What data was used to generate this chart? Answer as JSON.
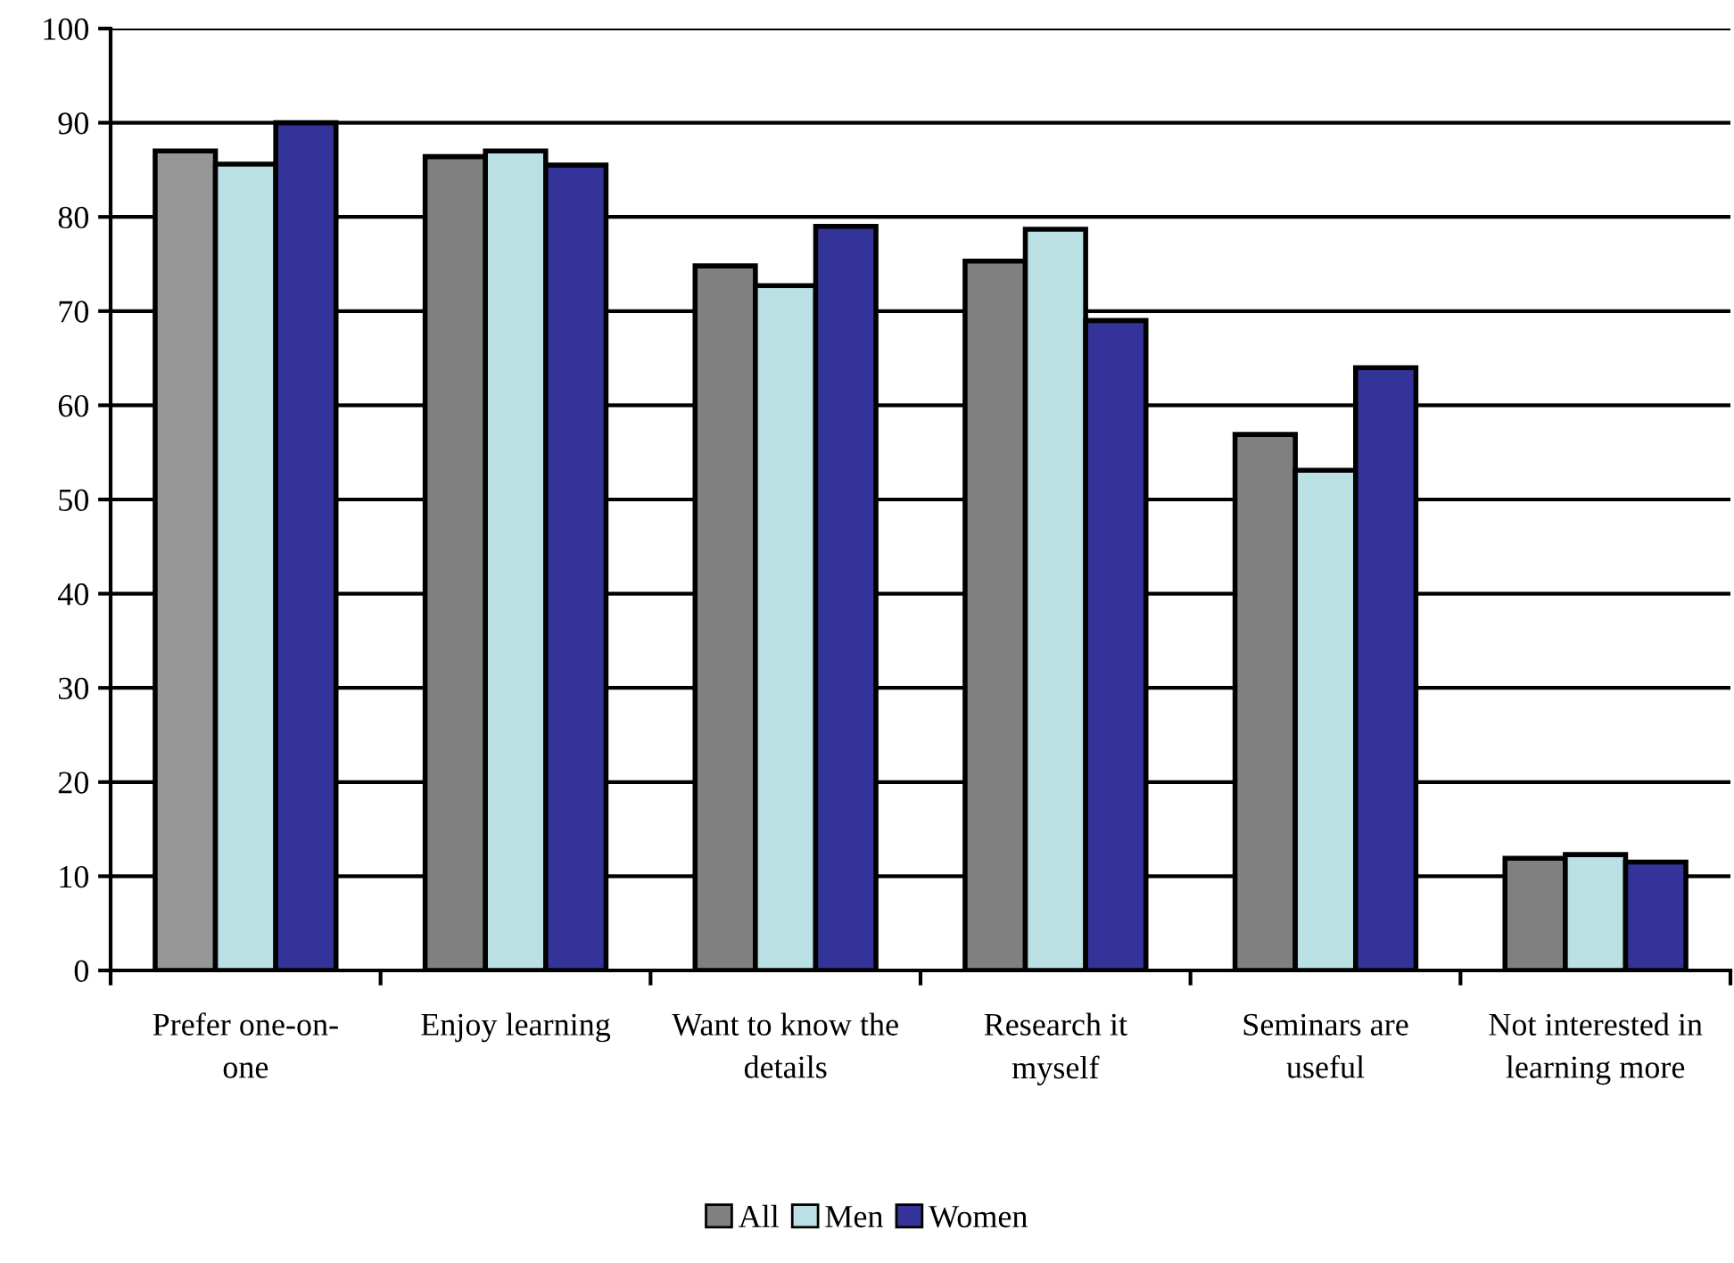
{
  "chart_data": {
    "type": "bar",
    "categories": [
      "Prefer one-on-one",
      "Enjoy learning",
      "Want to know the details",
      "Research it myself",
      "Seminars are useful",
      "Not interested in learning more"
    ],
    "series": [
      {
        "name": "All",
        "color": "#808080",
        "colors": [
          "#969696",
          "#808080",
          "#808080",
          "#808080",
          "#808080",
          "#808080"
        ],
        "values": [
          87,
          86.4,
          74.8,
          75.3,
          56.9,
          11.9
        ]
      },
      {
        "name": "Men",
        "color": "#bbe0e3",
        "values": [
          85.6,
          87,
          72.7,
          78.7,
          53.1,
          12.3
        ]
      },
      {
        "name": "Women",
        "color": "#333399",
        "values": [
          90,
          85.5,
          79,
          69,
          64,
          11.5
        ]
      }
    ],
    "ylim": [
      0,
      100
    ],
    "yticks": [
      0,
      10,
      20,
      30,
      40,
      50,
      60,
      70,
      80,
      90,
      100
    ],
    "grid": "y",
    "legend": "bottom"
  }
}
